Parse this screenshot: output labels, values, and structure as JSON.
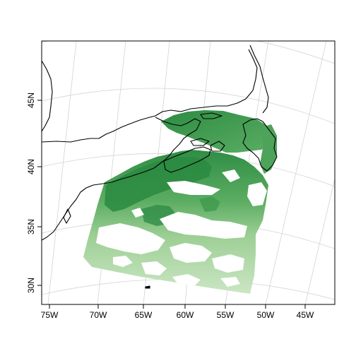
{
  "map": {
    "projection": "conic (lambert-style), North Atlantic region",
    "grid": true,
    "x_ticks": [
      "75W",
      "70W",
      "65W",
      "60W",
      "55W",
      "50W",
      "45W"
    ],
    "y_ticks": [
      "30N",
      "35N",
      "40N",
      "45N"
    ],
    "colors": {
      "coastline": "#000000",
      "graticule": "#d3d3d3",
      "frame": "#000000",
      "data_dark": "#2a8a41",
      "data_mid": "#5fb067",
      "data_light": "#a9d6a0",
      "data_pale": "#cfe8c8"
    }
  }
}
